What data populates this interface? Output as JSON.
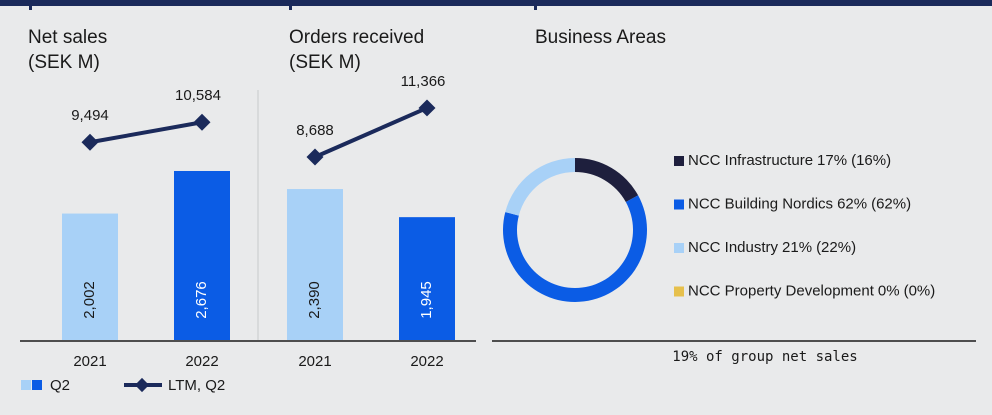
{
  "chart_data": [
    {
      "type": "bar",
      "title": "Net sales",
      "subtitle": "(SEK M)",
      "categories": [
        "2021",
        "2022"
      ],
      "series": [
        {
          "name": "Q2",
          "colors": [
            "#a8d1f7",
            "#0b5ce5"
          ],
          "values": [
            2002,
            2676
          ],
          "value_labels": [
            "2,002",
            "2,676"
          ]
        },
        {
          "name": "LTM, Q2",
          "color": "#1b2a5b",
          "axis": "y2",
          "values": [
            9494,
            10584
          ],
          "value_labels": [
            "9,494",
            "10,584"
          ]
        }
      ],
      "ylim": [
        0,
        3800
      ],
      "y2lim": [
        -1300,
        11800
      ]
    },
    {
      "type": "bar",
      "title": "Orders received",
      "subtitle": "(SEK M)",
      "categories": [
        "2021",
        "2022"
      ],
      "series": [
        {
          "colors": [
            "#a8d1f7",
            "#0b5ce5"
          ],
          "values": [
            2390,
            1945
          ],
          "value_labels": [
            "2,390",
            "1,945"
          ]
        },
        {
          "color": "#1b2a5b",
          "axis": "y2",
          "values": [
            8688,
            11366
          ],
          "value_labels": [
            "8,688",
            "11,366"
          ]
        }
      ],
      "ylim": [
        0,
        3800
      ],
      "y2lim": [
        -1300,
        11800
      ]
    },
    {
      "type": "pie",
      "title": "Business Areas",
      "categories": [
        "NCC Infrastructure",
        "NCC Building Nordics",
        "NCC Industry",
        "NCC Property Development"
      ],
      "values": [
        17,
        62,
        21,
        0
      ],
      "value_labels": [
        "17%",
        "62%",
        "21%",
        "0%"
      ],
      "previous_labels": [
        "(16%)",
        "(62%)",
        "(22%)",
        "(0%)"
      ],
      "colors": [
        "#1e1f3d",
        "#0b5ce5",
        "#a8d1f7",
        "#e6c04c"
      ],
      "footnote": "19% of group net sales"
    }
  ]
}
